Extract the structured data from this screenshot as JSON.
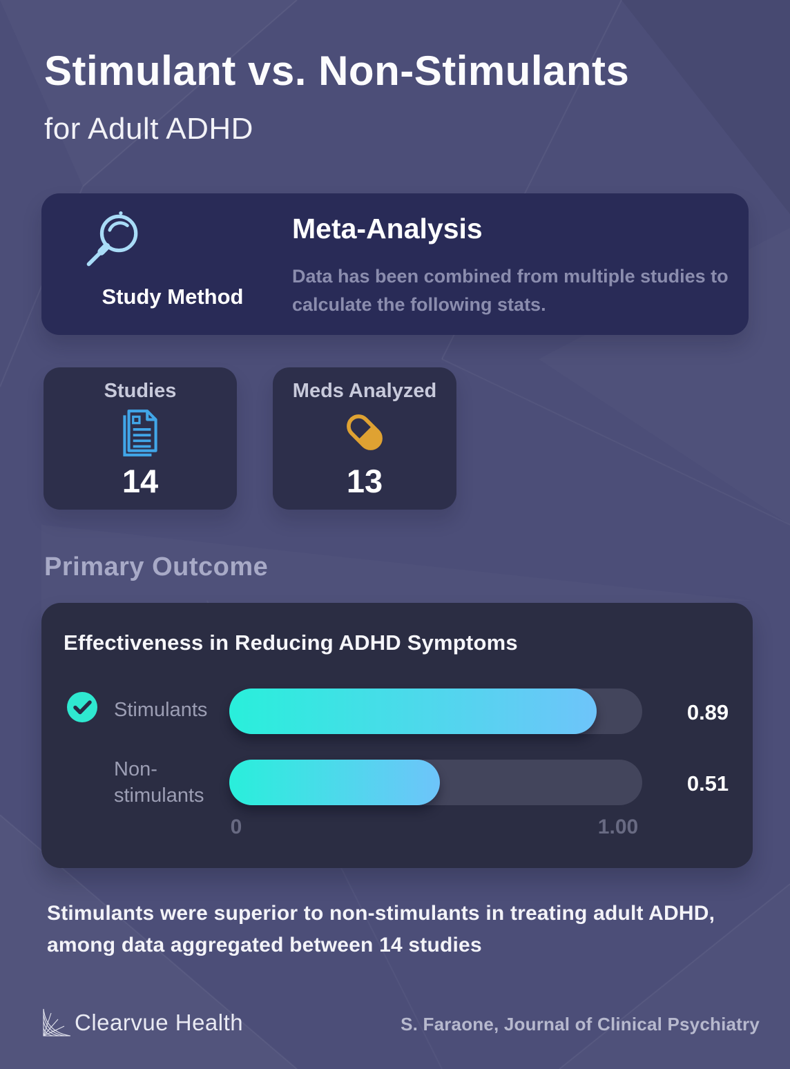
{
  "page": {
    "title": "Stimulant vs. Non-Stimulants",
    "subtitle": "for Adult ADHD"
  },
  "study_method": {
    "label": "Study Method",
    "icon": "magnifier-icon",
    "heading": "Meta-Analysis",
    "description": "Data has been combined from multiple studies to calculate the following stats."
  },
  "stats": [
    {
      "label": "Studies",
      "icon": "document-icon",
      "value": "14"
    },
    {
      "label": "Meds Analyzed",
      "icon": "pill-icon",
      "value": "13"
    }
  ],
  "section": {
    "heading": "Primary Outcome"
  },
  "chart_data": {
    "type": "bar",
    "orientation": "horizontal",
    "title": "Effectiveness in Reducing ADHD Symptoms",
    "categories": [
      "Stimulants",
      "Non-stimulants"
    ],
    "values": [
      0.89,
      0.51
    ],
    "value_labels": [
      "0.89",
      "0.51"
    ],
    "xlim": [
      0,
      1.0
    ],
    "x_ticks": [
      "0",
      "1.00"
    ],
    "highlighted_category": "Stimulants",
    "legend_position": "none",
    "grid": false,
    "bar_gradient": [
      "#29EFDB",
      "#6EC4FA"
    ],
    "track_color": "#43455C"
  },
  "summary": "Stimulants were superior to non-stimulants in treating adult ADHD, among data aggregated between 14 studies",
  "footer": {
    "brand": "Clearvue Health",
    "source": "S. Faraone, Journal of Clinical Psychiatry"
  },
  "colors": {
    "background": "#4C4E78",
    "card_navy": "#292B57",
    "card_dark": "#2D2F4B",
    "chart_card": "#2B2D43",
    "accent_teal": "#29EFDB",
    "accent_blue": "#6EC4FA",
    "accent_gold": "#DFA232",
    "icon_light_blue": "#A9DCF7",
    "icon_doc_blue": "#41A6E8",
    "muted_text": "#8B8DAE"
  }
}
